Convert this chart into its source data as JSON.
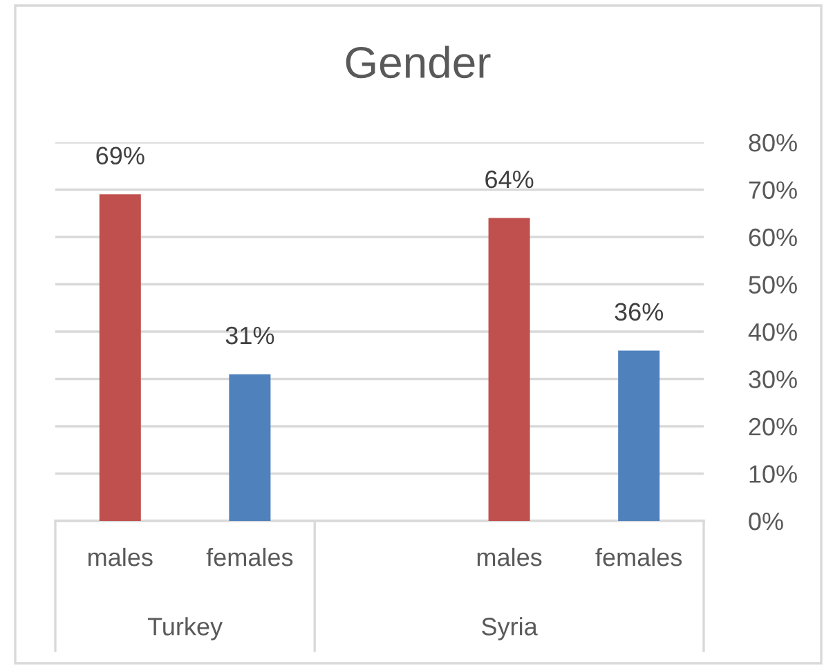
{
  "chart_data": {
    "type": "bar",
    "title": "Gender",
    "categories": [
      "males",
      "females",
      null,
      "males",
      "females"
    ],
    "values": [
      69,
      31,
      null,
      64,
      36
    ],
    "colors": [
      "#c0504d",
      "#4f81bd",
      null,
      "#c0504d",
      "#4f81bd"
    ],
    "value_labels": [
      "69%",
      "31%",
      null,
      "64%",
      "36%"
    ],
    "ylim": [
      0,
      80
    ],
    "yticks": [
      {
        "value": 0,
        "label": "0%"
      },
      {
        "value": 10,
        "label": "10%"
      },
      {
        "value": 20,
        "label": "20%"
      },
      {
        "value": 30,
        "label": "30%"
      },
      {
        "value": 40,
        "label": "40%"
      },
      {
        "value": 50,
        "label": "50%"
      },
      {
        "value": 60,
        "label": "60%"
      },
      {
        "value": 70,
        "label": "70%"
      },
      {
        "value": 80,
        "label": "80%"
      }
    ],
    "grid": "y",
    "annotations": [
      "Turkey",
      "Syria"
    ]
  }
}
